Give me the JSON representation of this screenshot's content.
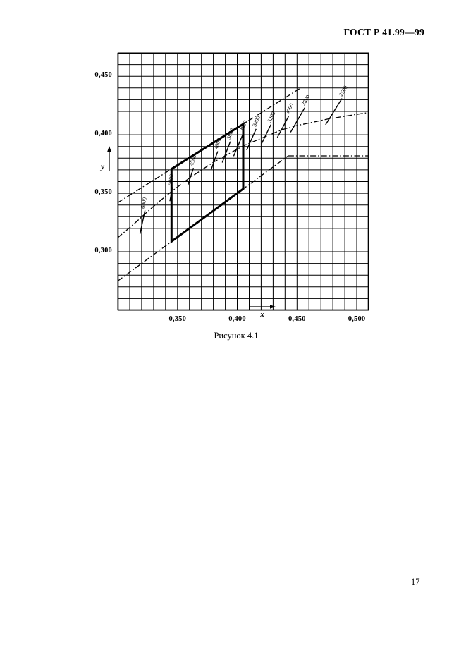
{
  "header": {
    "title": "ГОСТ Р 41.99—99"
  },
  "caption": "Рисунок 4.1",
  "page_number": "17",
  "chart_data": {
    "type": "line",
    "title": "Рисунок 4.1",
    "xlabel": "x",
    "ylabel": "y",
    "xlim": [
      0.3,
      0.51
    ],
    "ylim": [
      0.25,
      0.47
    ],
    "grid_step": 0.01,
    "grid": "on",
    "x_ticks": [
      {
        "value": 0.35,
        "label": "0,350"
      },
      {
        "value": 0.4,
        "label": "0,400"
      },
      {
        "value": 0.45,
        "label": "0,450"
      },
      {
        "value": 0.5,
        "label": "0,500"
      }
    ],
    "y_ticks": [
      {
        "value": 0.3,
        "label": "0,300"
      },
      {
        "value": 0.35,
        "label": "0,350"
      },
      {
        "value": 0.4,
        "label": "0,400"
      },
      {
        "value": 0.45,
        "label": "0,450"
      }
    ],
    "series": [
      {
        "name": "planckian-locus",
        "style": "dashdot",
        "points": [
          [
            0.3,
            0.312
          ],
          [
            0.3135,
            0.3237
          ],
          [
            0.3221,
            0.3318
          ],
          [
            0.3325,
            0.3411
          ],
          [
            0.3451,
            0.3516
          ],
          [
            0.3608,
            0.3636
          ],
          [
            0.3805,
            0.3768
          ],
          [
            0.4053,
            0.3907
          ],
          [
            0.4369,
            0.4041
          ],
          [
            0.4476,
            0.4074
          ],
          [
            0.477,
            0.4137
          ],
          [
            0.5051,
            0.4183
          ],
          [
            0.51,
            0.419
          ]
        ]
      },
      {
        "name": "green-boundary-line",
        "style": "dashdot",
        "points": [
          [
            0.3,
            0.342
          ],
          [
            0.452,
            0.4393
          ]
        ]
      },
      {
        "name": "purple-boundary-line",
        "style": "dashdot",
        "points": [
          [
            0.3,
            0.275
          ],
          [
            0.4427,
            0.382
          ]
        ]
      },
      {
        "name": "red-boundary-line",
        "style": "dashdot",
        "points": [
          [
            0.4427,
            0.382
          ],
          [
            0.51,
            0.382
          ]
        ]
      },
      {
        "name": "tolerance-quadrilateral",
        "style": "solid-bold",
        "closed": true,
        "points": [
          [
            0.345,
            0.3088
          ],
          [
            0.345,
            0.3708
          ],
          [
            0.405,
            0.4092
          ],
          [
            0.405,
            0.3538
          ]
        ]
      }
    ],
    "isotherms": [
      {
        "label": "6000",
        "x": 0.3221,
        "y": 0.3318,
        "angle": 78,
        "above": 6,
        "below": 28
      },
      {
        "label": "5000",
        "x": 0.3451,
        "y": 0.3516,
        "angle": 80,
        "above": 6,
        "below": 14
      },
      {
        "label": "4500",
        "x": 0.3608,
        "y": 0.3636,
        "angle": 72,
        "above": 14,
        "below": 12
      },
      {
        "label": "4000",
        "x": 0.3805,
        "y": 0.3768,
        "angle": 70,
        "above": 16,
        "below": 12
      },
      {
        "label": "3800",
        "x": 0.39,
        "y": 0.383,
        "angle": 69,
        "above": 20,
        "below": 12
      },
      {
        "label": "3600",
        "x": 0.4,
        "y": 0.389,
        "angle": 67,
        "above": 22,
        "below": 13
      },
      {
        "label": "3400",
        "x": 0.411,
        "y": 0.394,
        "angle": 66,
        "above": 20,
        "below": 13
      },
      {
        "label": "3200",
        "x": 0.424,
        "y": 0.4,
        "angle": 64,
        "above": 16,
        "below": 14
      },
      {
        "label": "3000",
        "x": 0.4369,
        "y": 0.4041,
        "angle": 62,
        "above": 22,
        "below": 12
      },
      {
        "label": "2800",
        "x": 0.4476,
        "y": 0.4074,
        "angle": 60,
        "above": 30,
        "below": 10
      },
      {
        "label": "2500",
        "x": 0.477,
        "y": 0.4137,
        "angle": 58,
        "above": 34,
        "below": 10
      }
    ]
  }
}
